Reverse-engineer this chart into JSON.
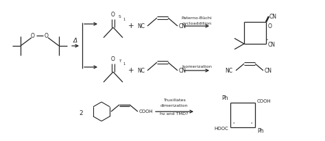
{
  "bg": "#ffffff",
  "lc": "#222222",
  "tc": "#222222",
  "fw": 4.74,
  "fh": 2.06,
  "dpi": 100,
  "lbl_paterno1": "Paterno-Büchi",
  "lbl_paterno2": "cycloaddition",
  "lbl_isom": "Isomerization",
  "lbl_trux1": "Truxillates",
  "lbl_trux2": "dimerization",
  "lbl_trux3": "hν and TMD?",
  "lbl_delta": "Δ",
  "lbl_S1": "S",
  "lbl_T1": "T",
  "lbl_sub1": "1",
  "fs_main": 5.5,
  "fs_lbl": 4.6,
  "fs_sub": 3.8
}
